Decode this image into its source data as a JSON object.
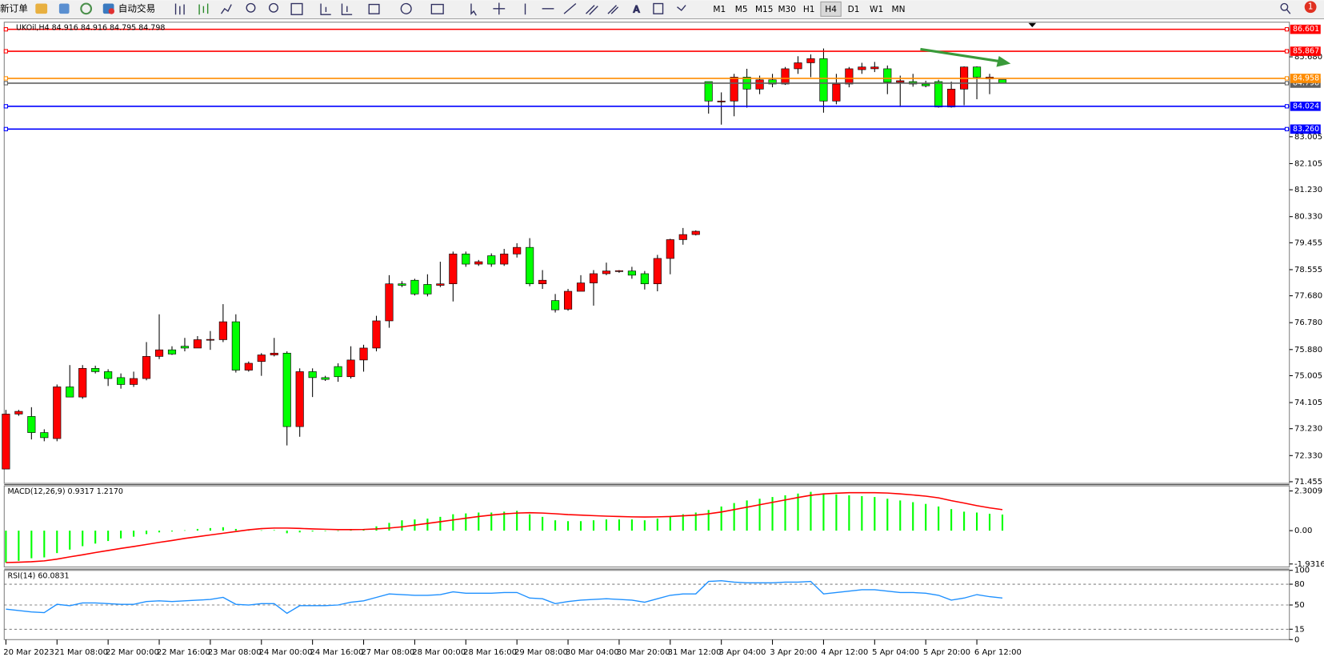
{
  "toolbar": {
    "new_order": "新订单",
    "auto_trading": "自动交易",
    "timeframes": [
      "M1",
      "M5",
      "M15",
      "M30",
      "H1",
      "H4",
      "D1",
      "W1",
      "MN"
    ],
    "active_timeframe": "H4",
    "notification": "1"
  },
  "chart_data": [
    {
      "type": "candlestick",
      "title": "UKOil,H4  84.916 84.916 84.795 84.798",
      "categories": [
        "20 Mar 2023",
        null,
        null,
        null,
        "21 Mar 08:00",
        null,
        null,
        null,
        "22 Mar 00:00",
        null,
        null,
        null,
        "22 Mar 16:00",
        null,
        null,
        null,
        "23 Mar 08:00",
        null,
        null,
        null,
        "24 Mar 00:00",
        null,
        null,
        null,
        "24 Mar 16:00",
        null,
        null,
        null,
        "27 Mar 08:00",
        null,
        null,
        null,
        "28 Mar 00:00",
        null,
        null,
        null,
        "28 Mar 16:00",
        null,
        null,
        null,
        "29 Mar 08:00",
        null,
        null,
        null,
        "30 Mar 04:00",
        null,
        null,
        null,
        "30 Mar 20:00",
        null,
        null,
        null,
        "31 Mar 12:00",
        null,
        null,
        null,
        "3 Apr 04:00",
        null,
        null,
        null,
        "3 Apr 20:00",
        null,
        null,
        null,
        "4 Apr 12:00",
        null,
        null,
        null,
        "5 Apr 04:00",
        null,
        null,
        null,
        "5 Apr 20:00",
        null,
        null,
        null,
        "6 Apr 12:00",
        null,
        null
      ],
      "open": [
        71.88,
        73.72,
        73.64,
        73.1,
        72.9,
        74.63,
        74.29,
        75.25,
        75.14,
        74.94,
        74.71,
        74.91,
        75.65,
        75.87,
        75.99,
        75.93,
        76.21,
        76.21,
        76.81,
        75.19,
        75.48,
        75.7,
        75.76,
        73.3,
        75.14,
        74.94,
        75.31,
        74.97,
        75.53,
        75.93,
        76.84,
        78.08,
        78.2,
        78.06,
        78.03,
        78.08,
        79.08,
        78.74,
        79.02,
        78.74,
        79.08,
        79.3,
        78.08,
        77.52,
        77.23,
        77.83,
        78.11,
        78.42,
        78.51,
        78.51,
        78.42,
        78.08,
        78.93,
        79.56,
        79.73,
        84.85,
        84.17,
        84.2,
        85.0,
        84.6,
        84.91,
        84.77,
        85.28,
        85.48,
        85.62,
        84.2,
        84.77,
        85.25,
        85.28,
        85.28,
        84.83,
        84.85,
        84.77,
        84.85,
        84.0,
        84.6,
        85.34,
        84.94,
        84.916
      ],
      "high": [
        73.86,
        73.86,
        73.95,
        73.21,
        74.71,
        75.36,
        75.36,
        75.34,
        75.22,
        75.08,
        75.14,
        76.13,
        77.06,
        75.99,
        76.27,
        76.33,
        76.5,
        77.4,
        77.06,
        75.48,
        75.76,
        76.27,
        75.82,
        75.25,
        75.25,
        75.0,
        75.42,
        75.99,
        76.04,
        77.01,
        78.37,
        78.17,
        78.25,
        78.4,
        78.82,
        79.16,
        79.16,
        78.88,
        79.1,
        79.25,
        79.44,
        79.61,
        78.54,
        77.74,
        77.91,
        78.37,
        78.54,
        78.79,
        78.54,
        78.65,
        78.51,
        79.05,
        79.59,
        79.95,
        79.87,
        84.85,
        84.49,
        85.11,
        85.28,
        85.05,
        85.11,
        85.34,
        85.7,
        85.76,
        85.96,
        85.11,
        85.34,
        85.48,
        85.51,
        85.39,
        85.05,
        85.11,
        84.88,
        84.91,
        84.85,
        85.36,
        85.36,
        85.11,
        84.916
      ],
      "low": [
        71.88,
        73.66,
        72.87,
        72.81,
        72.81,
        74.29,
        74.23,
        75.08,
        74.66,
        74.57,
        74.63,
        74.85,
        75.56,
        75.7,
        75.82,
        75.93,
        75.87,
        76.13,
        75.11,
        75.14,
        75.0,
        75.65,
        72.67,
        72.96,
        74.29,
        74.83,
        74.8,
        74.91,
        75.14,
        75.82,
        76.61,
        77.97,
        77.69,
        77.66,
        77.97,
        77.49,
        78.65,
        78.68,
        78.65,
        78.68,
        78.96,
        78.0,
        77.91,
        77.12,
        77.18,
        77.83,
        77.35,
        78.37,
        78.45,
        78.25,
        77.89,
        77.83,
        78.4,
        79.39,
        79.7,
        83.78,
        83.41,
        83.69,
        83.98,
        84.43,
        84.66,
        84.74,
        85.11,
        85.0,
        83.81,
        84.09,
        84.66,
        85.11,
        85.17,
        84.43,
        84.0,
        84.68,
        84.66,
        83.98,
        83.98,
        84.06,
        84.26,
        84.43,
        84.795
      ],
      "close": [
        73.72,
        73.81,
        73.1,
        72.93,
        74.63,
        74.29,
        75.25,
        75.14,
        74.91,
        74.71,
        74.91,
        75.65,
        75.87,
        75.73,
        75.93,
        76.21,
        76.22,
        76.81,
        75.19,
        75.42,
        75.7,
        75.76,
        73.3,
        75.14,
        74.94,
        74.88,
        74.97,
        75.53,
        75.93,
        76.84,
        78.08,
        78.03,
        77.74,
        77.74,
        78.08,
        79.08,
        78.74,
        78.82,
        78.74,
        79.08,
        79.3,
        78.08,
        78.2,
        77.21,
        77.83,
        78.11,
        78.42,
        78.51,
        78.52,
        78.37,
        78.08,
        78.93,
        79.56,
        79.73,
        79.84,
        84.2,
        84.2,
        85.0,
        84.6,
        84.91,
        84.77,
        85.28,
        85.48,
        85.62,
        84.2,
        84.77,
        85.28,
        85.34,
        85.34,
        84.83,
        84.88,
        84.77,
        84.71,
        84.0,
        84.6,
        85.34,
        85.0,
        85.0,
        84.798
      ],
      "up_color": "#ff0000",
      "down_color": "#00ff00",
      "ylim": [
        71.4,
        86.84
      ],
      "yticks": [
        {
          "value": 85.68,
          "label": "85.680"
        },
        83.005,
        82.105,
        {
          "value": 81.23,
          "label": "81.230"
        },
        {
          "value": 80.33,
          "label": "80.330"
        },
        79.455,
        78.555,
        {
          "value": 77.68,
          "label": "77.680"
        },
        {
          "value": 76.78,
          "label": "76.780"
        },
        {
          "value": 75.88,
          "label": "75.880"
        },
        75.005,
        74.105,
        {
          "value": 73.23,
          "label": "73.230"
        },
        {
          "value": 72.33,
          "label": "72.330"
        },
        71.455
      ],
      "hlines": [
        {
          "value": 86.601,
          "color": "#ff0000"
        },
        {
          "value": 85.867,
          "color": "#ff0000"
        },
        {
          "value": 84.798,
          "color": "#606060"
        },
        {
          "value": 84.958,
          "color": "#ff8c00"
        },
        {
          "value": 84.024,
          "color": "#0000ff"
        },
        {
          "value": 83.26,
          "label": "83.260",
          "color": "#0000ff"
        }
      ]
    },
    {
      "type": "macd",
      "title": "MACD(12,26,9) 0.9317 1.2170",
      "histogram": {
        "color": "#00ff00",
        "values": [
          -1.85,
          -1.75,
          -1.6,
          -1.55,
          -1.3,
          -1.1,
          -0.9,
          -0.75,
          -0.6,
          -0.45,
          -0.35,
          -0.2,
          -0.1,
          -0.05,
          0.02,
          0.1,
          0.15,
          0.2,
          0.1,
          0.05,
          0.02,
          0.03,
          -0.15,
          -0.1,
          -0.05,
          -0.03,
          0,
          0.05,
          0.1,
          0.25,
          0.45,
          0.6,
          0.65,
          0.7,
          0.8,
          0.95,
          1.0,
          1.05,
          1.05,
          1.1,
          1.15,
          0.95,
          0.8,
          0.6,
          0.55,
          0.55,
          0.6,
          0.65,
          0.65,
          0.65,
          0.6,
          0.7,
          0.85,
          0.95,
          1.05,
          1.2,
          1.4,
          1.6,
          1.75,
          1.85,
          1.95,
          2.05,
          2.15,
          2.25,
          2.15,
          2.1,
          2.05,
          2.0,
          1.95,
          1.85,
          1.75,
          1.65,
          1.55,
          1.4,
          1.25,
          1.1,
          1.05,
          0.98,
          0.9317
        ]
      },
      "signal": {
        "color": "#ff0000",
        "values": [
          -1.85,
          -1.83,
          -1.8,
          -1.75,
          -1.65,
          -1.52,
          -1.4,
          -1.27,
          -1.15,
          -1.03,
          -0.92,
          -0.8,
          -0.68,
          -0.57,
          -0.45,
          -0.35,
          -0.25,
          -0.15,
          -0.05,
          0.05,
          0.12,
          0.15,
          0.15,
          0.13,
          0.1,
          0.08,
          0.06,
          0.06,
          0.07,
          0.1,
          0.15,
          0.22,
          0.32,
          0.42,
          0.52,
          0.62,
          0.72,
          0.82,
          0.9,
          0.97,
          1.02,
          1.04,
          1.02,
          0.98,
          0.93,
          0.9,
          0.87,
          0.84,
          0.82,
          0.8,
          0.79,
          0.8,
          0.82,
          0.86,
          0.9,
          0.98,
          1.08,
          1.22,
          1.36,
          1.5,
          1.64,
          1.78,
          1.92,
          2.05,
          2.13,
          2.17,
          2.2,
          2.2,
          2.2,
          2.18,
          2.13,
          2.07,
          2.0,
          1.9,
          1.74,
          1.6,
          1.45,
          1.32,
          1.217
        ]
      },
      "ylim": [
        -2.105,
        2.594
      ],
      "yticks": [
        2.3009,
        {
          "value": 0,
          "label": "0.00"
        },
        -1.9316
      ]
    },
    {
      "type": "line",
      "title": "RSI(14) 60.0831",
      "color": "#1e90ff",
      "values": [
        44,
        42,
        40,
        39,
        51,
        49,
        53,
        53,
        52,
        51,
        51,
        55,
        56,
        55,
        56,
        57,
        58,
        61,
        51,
        50,
        52,
        52,
        38,
        49,
        49,
        49,
        50,
        54,
        56,
        61,
        66,
        65,
        64,
        64,
        65,
        69,
        67,
        67,
        67,
        68,
        68,
        60,
        59,
        52,
        55,
        57,
        58,
        59,
        58,
        57,
        54,
        59,
        64,
        66,
        66,
        84,
        85,
        83,
        82,
        82,
        82,
        83,
        83,
        84,
        66,
        68,
        70,
        72,
        72,
        70,
        68,
        68,
        67,
        64,
        57,
        60,
        65,
        62,
        60.0831
      ],
      "ylim": [
        0,
        100
      ],
      "yticks": [
        100,
        80,
        50,
        15,
        0
      ],
      "grid": "dashed"
    }
  ]
}
